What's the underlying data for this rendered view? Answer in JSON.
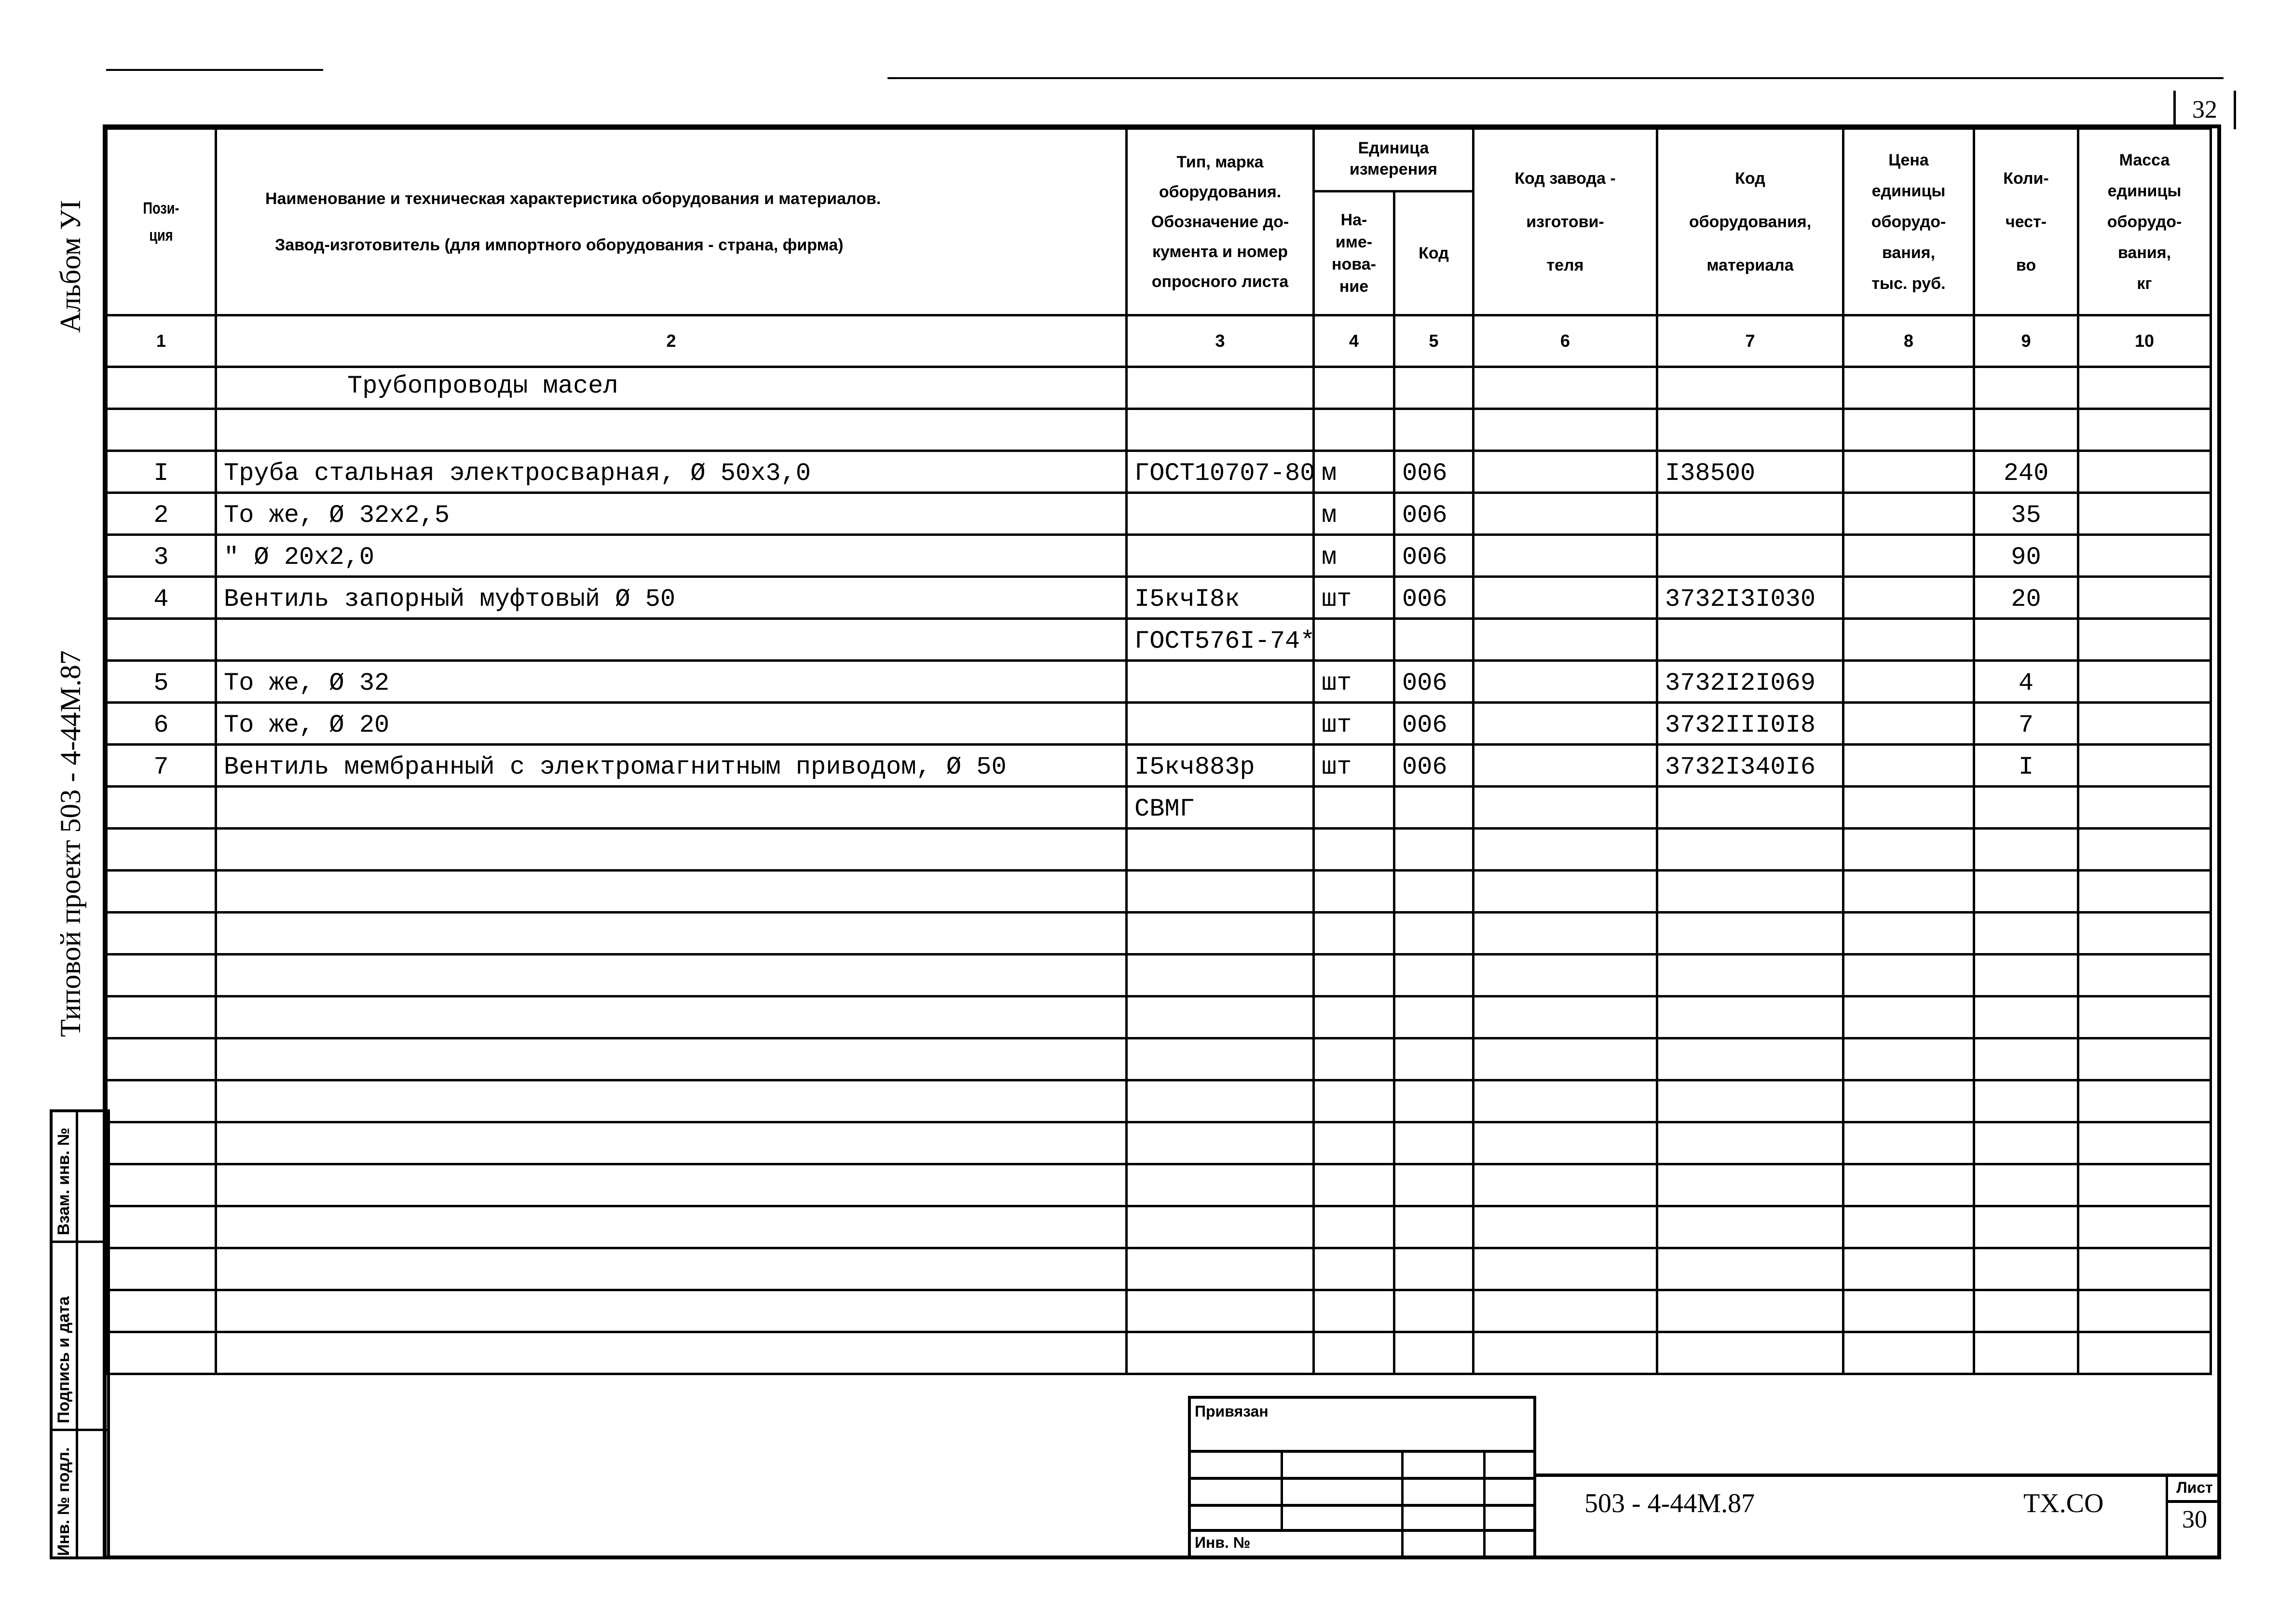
{
  "page_number_top": "32",
  "margin": {
    "album": "Альбом УI",
    "project": "Типовой проект 503 - 4-44М.87",
    "stamp": [
      "Взам. инв. №",
      "Подпись и дата",
      "Инв. № подл."
    ]
  },
  "table": {
    "headers": {
      "pos": "Пози-ция",
      "name_line1": "Наименование и техническая характеристика оборудования и материалов.",
      "name_line2": "Завод-изготовитель (для импортного оборудования - страна, фирма)",
      "type": [
        "Тип, марка",
        "оборудования.",
        "Обозначение до-",
        "кумента и номер",
        "опросного листа"
      ],
      "unit": "Единица измерения",
      "unit_name": [
        "На-",
        "име-",
        "нова-",
        "ние"
      ],
      "unit_code": "Код",
      "plant_code": [
        "Код завода -",
        "изготови-",
        "теля"
      ],
      "equip_code": [
        "Код",
        "оборудования,",
        "материала"
      ],
      "price": [
        "Цена",
        "единицы",
        "оборудо-",
        "вания,",
        "тыс. руб."
      ],
      "qty": [
        "Коли-",
        "чест-",
        "во"
      ],
      "mass": [
        "Масса",
        "единицы",
        "оборудо-",
        "вания,",
        "кг"
      ]
    },
    "column_numbers": [
      "1",
      "2",
      "3",
      "4",
      "5",
      "6",
      "7",
      "8",
      "9",
      "10"
    ],
    "rows": [
      {
        "pos": "",
        "name": "Трубопроводы масел",
        "type": "",
        "unit": "",
        "code": "",
        "plant": "",
        "equip": "",
        "price": "",
        "qty": "",
        "mass": "",
        "section": true
      },
      {
        "pos": "",
        "name": "",
        "type": "",
        "unit": "",
        "code": "",
        "plant": "",
        "equip": "",
        "price": "",
        "qty": "",
        "mass": ""
      },
      {
        "pos": "I",
        "name": "Труба стальная электросварная, Ø 50x3,0",
        "type": "ГОСТ10707-80",
        "unit": "м",
        "code": "006",
        "plant": "",
        "equip": "I38500",
        "price": "",
        "qty": "240",
        "mass": ""
      },
      {
        "pos": "2",
        "name": "То же, Ø 32x2,5",
        "type": "",
        "unit": "м",
        "code": "006",
        "plant": "",
        "equip": "",
        "price": "",
        "qty": "35",
        "mass": ""
      },
      {
        "pos": "3",
        "name": "\"      Ø 20x2,0",
        "type": "",
        "unit": "м",
        "code": "006",
        "plant": "",
        "equip": "",
        "price": "",
        "qty": "90",
        "mass": ""
      },
      {
        "pos": "4",
        "name": "Вентиль запорный муфтовый Ø 50",
        "type": "I5кчI8к",
        "unit": "шт",
        "code": "006",
        "plant": "",
        "equip": "3732I3I030",
        "price": "",
        "qty": "20",
        "mass": ""
      },
      {
        "pos": "",
        "name": "",
        "type": "ГОСТ576I-74*",
        "unit": "",
        "code": "",
        "plant": "",
        "equip": "",
        "price": "",
        "qty": "",
        "mass": ""
      },
      {
        "pos": "5",
        "name": "То же, Ø 32",
        "type": "",
        "unit": "шт",
        "code": "006",
        "plant": "",
        "equip": "3732I2I069",
        "price": "",
        "qty": "4",
        "mass": ""
      },
      {
        "pos": "6",
        "name": "То же, Ø 20",
        "type": "",
        "unit": "шт",
        "code": "006",
        "plant": "",
        "equip": "3732III0I8",
        "price": "",
        "qty": "7",
        "mass": ""
      },
      {
        "pos": "7",
        "name": "Вентиль мембранный с электромагнитным приводом, Ø 50",
        "type": "I5кч883р",
        "unit": "шт",
        "code": "006",
        "plant": "",
        "equip": "3732I340I6",
        "price": "",
        "qty": "I",
        "mass": ""
      },
      {
        "pos": "",
        "name": "",
        "type": "СВМГ",
        "unit": "",
        "code": "",
        "plant": "",
        "equip": "",
        "price": "",
        "qty": "",
        "mass": ""
      },
      {},
      {},
      {},
      {},
      {},
      {},
      {},
      {},
      {},
      {},
      {},
      {},
      {}
    ]
  },
  "title_block": {
    "bound_label": "Привязан",
    "inv_label": "Инв. №",
    "doc_code": "503 - 4-44М.87",
    "mark": "ТХ.СО",
    "sheet_label": "Лист",
    "sheet_number": "30"
  }
}
